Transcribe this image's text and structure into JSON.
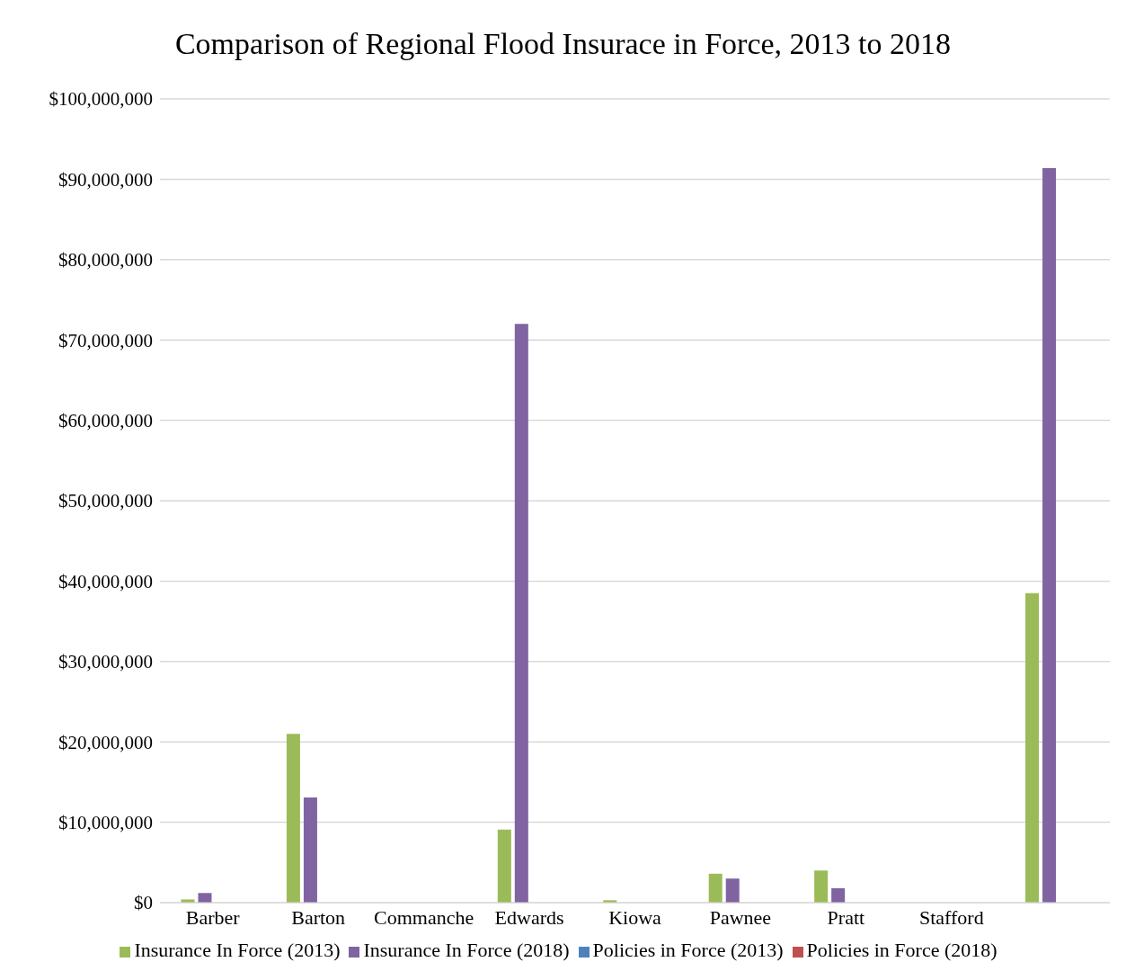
{
  "chart_data": {
    "type": "bar",
    "title": "Comparison of Regional Flood Insurace in Force, 2013 to 2018",
    "categories": [
      "Barber",
      "Barton",
      "Commanche",
      "Edwards",
      "Kiowa",
      "Pawnee",
      "Pratt",
      "Stafford",
      null
    ],
    "series": [
      {
        "name": "Insurance In Force (2013)",
        "color": "#9bbb59",
        "values": [
          400000,
          21000000,
          0,
          9100000,
          300000,
          3600000,
          4000000,
          0,
          38500000
        ]
      },
      {
        "name": "Insurance In Force (2018)",
        "color": "#8064a2",
        "values": [
          1200000,
          13100000,
          0,
          72000000,
          null,
          3000000,
          1800000,
          0,
          91400000
        ]
      },
      {
        "name": "Policies in Force (2013)",
        "color": "#4f81bd",
        "values": [
          0,
          0,
          0,
          0,
          0,
          0,
          0,
          0,
          0
        ]
      },
      {
        "name": "Policies in Force (2018)",
        "color": "#c0504d",
        "values": [
          0,
          0,
          0,
          0,
          0,
          0,
          0,
          0,
          0
        ]
      }
    ],
    "ylim": [
      0,
      100000000
    ],
    "yticks": [
      {
        "value": 0,
        "label": "$0"
      },
      {
        "value": 10000000,
        "label": "$10,000,000"
      },
      {
        "value": 20000000,
        "label": "$20,000,000"
      },
      {
        "value": 30000000,
        "label": "$30,000,000"
      },
      {
        "value": 40000000,
        "label": "$40,000,000"
      },
      {
        "value": 50000000,
        "label": "$50,000,000"
      },
      {
        "value": 60000000,
        "label": "$60,000,000"
      },
      {
        "value": 70000000,
        "label": "$70,000,000"
      },
      {
        "value": 80000000,
        "label": "$80,000,000"
      },
      {
        "value": 90000000,
        "label": "$90,000,000"
      },
      {
        "value": 100000000,
        "label": "$100,000,000"
      }
    ],
    "grid": "y",
    "legend": "bottom"
  }
}
